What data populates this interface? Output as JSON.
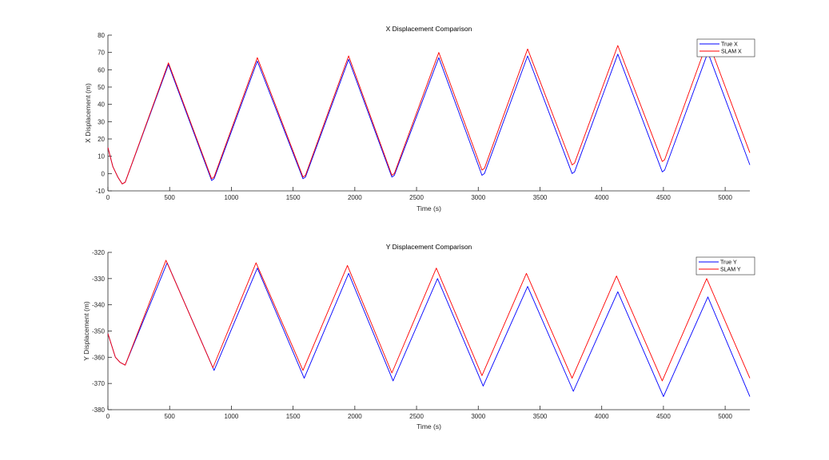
{
  "chart_data": [
    {
      "type": "line",
      "title": "X Displacement Comparison",
      "xlabel": "Time (s)",
      "ylabel": "X Displacement (m)",
      "xlim": [
        0,
        5200
      ],
      "ylim": [
        -10,
        80
      ],
      "xticks": [
        0,
        500,
        1000,
        1500,
        2000,
        2500,
        3000,
        3500,
        4000,
        4500,
        5000
      ],
      "yticks": [
        -10,
        0,
        10,
        20,
        30,
        40,
        50,
        60,
        70,
        80
      ],
      "grid": false,
      "legend_location": "top-right",
      "series": [
        {
          "name": "True X",
          "color": "#0000ff",
          "x": [
            0,
            40,
            80,
            115,
            140,
            490,
            840,
            860,
            1210,
            1580,
            1600,
            1950,
            2300,
            2320,
            2680,
            3030,
            3050,
            3400,
            3760,
            3780,
            4130,
            4490,
            4510,
            4860,
            5200
          ],
          "y": [
            15,
            4,
            -2,
            -6,
            -5,
            63,
            -4,
            -3,
            65,
            -3,
            -2,
            66,
            -2,
            -1,
            67,
            -1,
            0,
            68,
            0,
            1,
            69,
            1,
            2,
            70,
            5
          ]
        },
        {
          "name": "SLAM X",
          "color": "#ff0000",
          "x": [
            0,
            40,
            80,
            115,
            140,
            490,
            840,
            860,
            1210,
            1580,
            1600,
            1950,
            2300,
            2320,
            2680,
            3030,
            3050,
            3400,
            3760,
            3780,
            4130,
            4490,
            4510,
            4860,
            5200
          ],
          "y": [
            15,
            4,
            -2,
            -6,
            -5,
            64,
            -3,
            -2,
            67,
            -2,
            -1,
            68,
            -1,
            0,
            70,
            2,
            3,
            72,
            5,
            6,
            74,
            7,
            8,
            77,
            12
          ]
        }
      ]
    },
    {
      "type": "line",
      "title": "Y Displacement Comparison",
      "xlabel": "Time (s)",
      "ylabel": "Y Displacement (m)",
      "xlim": [
        0,
        5200
      ],
      "ylim": [
        -380,
        -320
      ],
      "xticks": [
        0,
        500,
        1000,
        1500,
        2000,
        2500,
        3000,
        3500,
        4000,
        4500,
        5000
      ],
      "yticks": [
        -380,
        -370,
        -360,
        -350,
        -340,
        -330,
        -320
      ],
      "grid": false,
      "legend_location": "top-right",
      "series": [
        {
          "name": "True Y",
          "color": "#0000ff",
          "x": [
            0,
            60,
            100,
            140,
            480,
            860,
            1210,
            1590,
            1950,
            2310,
            2670,
            3040,
            3400,
            3770,
            4130,
            4500,
            4860,
            5200
          ],
          "y": [
            -351,
            -360,
            -362,
            -363,
            -324,
            -365,
            -326,
            -368,
            -328,
            -369,
            -330,
            -371,
            -333,
            -373,
            -335,
            -375,
            -337,
            -375
          ]
        },
        {
          "name": "SLAM Y",
          "color": "#ff0000",
          "x": [
            0,
            60,
            100,
            140,
            470,
            850,
            1200,
            1580,
            1940,
            2300,
            2660,
            3030,
            3390,
            3760,
            4120,
            4490,
            4850,
            5200
          ],
          "y": [
            -351,
            -360,
            -362,
            -363,
            -323,
            -364,
            -324,
            -365,
            -325,
            -366,
            -326,
            -367,
            -328,
            -368,
            -329,
            -369,
            -330,
            -368
          ]
        }
      ]
    }
  ]
}
